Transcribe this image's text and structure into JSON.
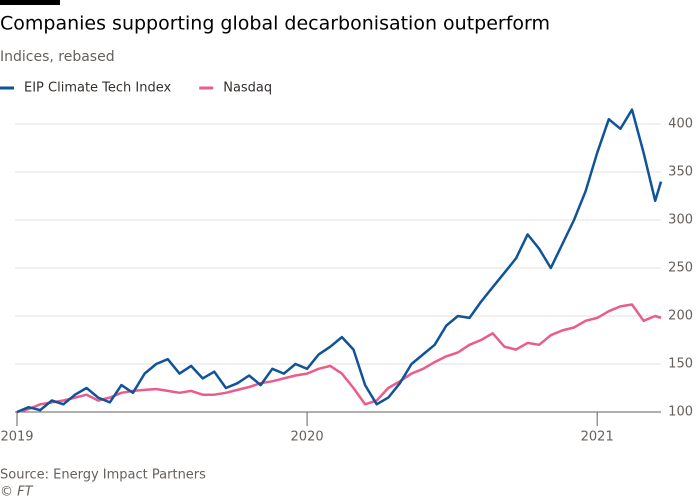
{
  "chart_data": {
    "type": "line",
    "title": "Companies supporting global decarbonisation outperform",
    "subtitle": "Indices, rebased",
    "source": "Source: Energy Impact Partners",
    "credit": "© FT",
    "x": [
      2019.0,
      2019.04,
      2019.08,
      2019.12,
      2019.16,
      2019.2,
      2019.24,
      2019.28,
      2019.32,
      2019.36,
      2019.4,
      2019.44,
      2019.48,
      2019.52,
      2019.56,
      2019.6,
      2019.64,
      2019.68,
      2019.72,
      2019.76,
      2019.8,
      2019.84,
      2019.88,
      2019.92,
      2019.96,
      2020.0,
      2020.04,
      2020.08,
      2020.12,
      2020.16,
      2020.2,
      2020.24,
      2020.28,
      2020.32,
      2020.36,
      2020.4,
      2020.44,
      2020.48,
      2020.52,
      2020.56,
      2020.6,
      2020.64,
      2020.68,
      2020.72,
      2020.76,
      2020.8,
      2020.84,
      2020.88,
      2020.92,
      2020.96,
      2021.0,
      2021.04,
      2021.08,
      2021.12,
      2021.16,
      2021.2,
      2021.22
    ],
    "series": [
      {
        "name": "EIP Climate Tech Index",
        "color": "#0f5499",
        "values": [
          100,
          105,
          102,
          112,
          108,
          118,
          125,
          115,
          110,
          128,
          120,
          140,
          150,
          155,
          140,
          148,
          135,
          142,
          125,
          130,
          138,
          128,
          145,
          140,
          150,
          145,
          160,
          168,
          178,
          165,
          128,
          108,
          115,
          130,
          150,
          160,
          170,
          190,
          200,
          198,
          215,
          230,
          245,
          260,
          285,
          270,
          250,
          275,
          300,
          330,
          370,
          405,
          395,
          415,
          370,
          320,
          340
        ]
      },
      {
        "name": "Nasdaq",
        "color": "#e95d8c",
        "values": [
          100,
          103,
          108,
          110,
          112,
          115,
          118,
          112,
          115,
          120,
          122,
          123,
          124,
          122,
          120,
          122,
          118,
          118,
          120,
          123,
          126,
          130,
          132,
          135,
          138,
          140,
          145,
          148,
          140,
          125,
          108,
          112,
          125,
          132,
          140,
          145,
          152,
          158,
          162,
          170,
          175,
          182,
          168,
          165,
          172,
          170,
          180,
          185,
          188,
          195,
          198,
          205,
          210,
          212,
          195,
          200,
          198
        ]
      }
    ],
    "xlim": [
      2019,
      2021.22
    ],
    "xticks": [
      2019,
      2020,
      2021
    ],
    "ylim": [
      95,
      425
    ],
    "yticks": [
      100,
      150,
      200,
      250,
      300,
      350,
      400
    ],
    "grid": true
  }
}
